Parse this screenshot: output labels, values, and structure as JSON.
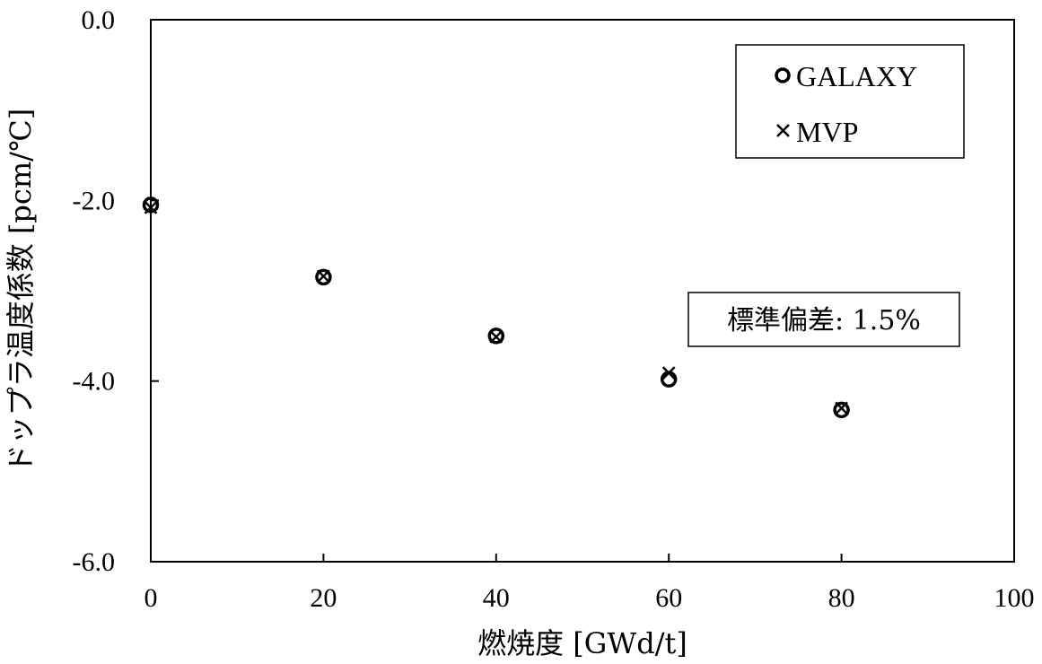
{
  "chart_data": {
    "type": "scatter",
    "xlabel": "燃焼度 [GWd/t]",
    "ylabel": "ドップラ温度係数 [pcm/℃]",
    "xlim": [
      0,
      100
    ],
    "ylim": [
      -6.0,
      0.0
    ],
    "x_ticks": [
      "0",
      "20",
      "40",
      "60",
      "80",
      "100"
    ],
    "y_ticks": [
      "0.0",
      "-2.0",
      "-4.0",
      "-6.0"
    ],
    "grid": false,
    "legend": {
      "placement": "top-right",
      "entries": [
        "GALAXY",
        "MVP"
      ]
    },
    "series": [
      {
        "name": "GALAXY",
        "marker": "circle",
        "x": [
          0,
          20,
          40,
          60,
          80
        ],
        "y": [
          -2.05,
          -2.85,
          -3.5,
          -3.98,
          -4.32
        ]
      },
      {
        "name": "MVP",
        "marker": "x",
        "x": [
          0,
          20,
          40,
          60,
          80
        ],
        "y": [
          -2.08,
          -2.84,
          -3.51,
          -3.91,
          -4.3
        ]
      }
    ],
    "annotation": "標準偏差: 1.5%"
  }
}
